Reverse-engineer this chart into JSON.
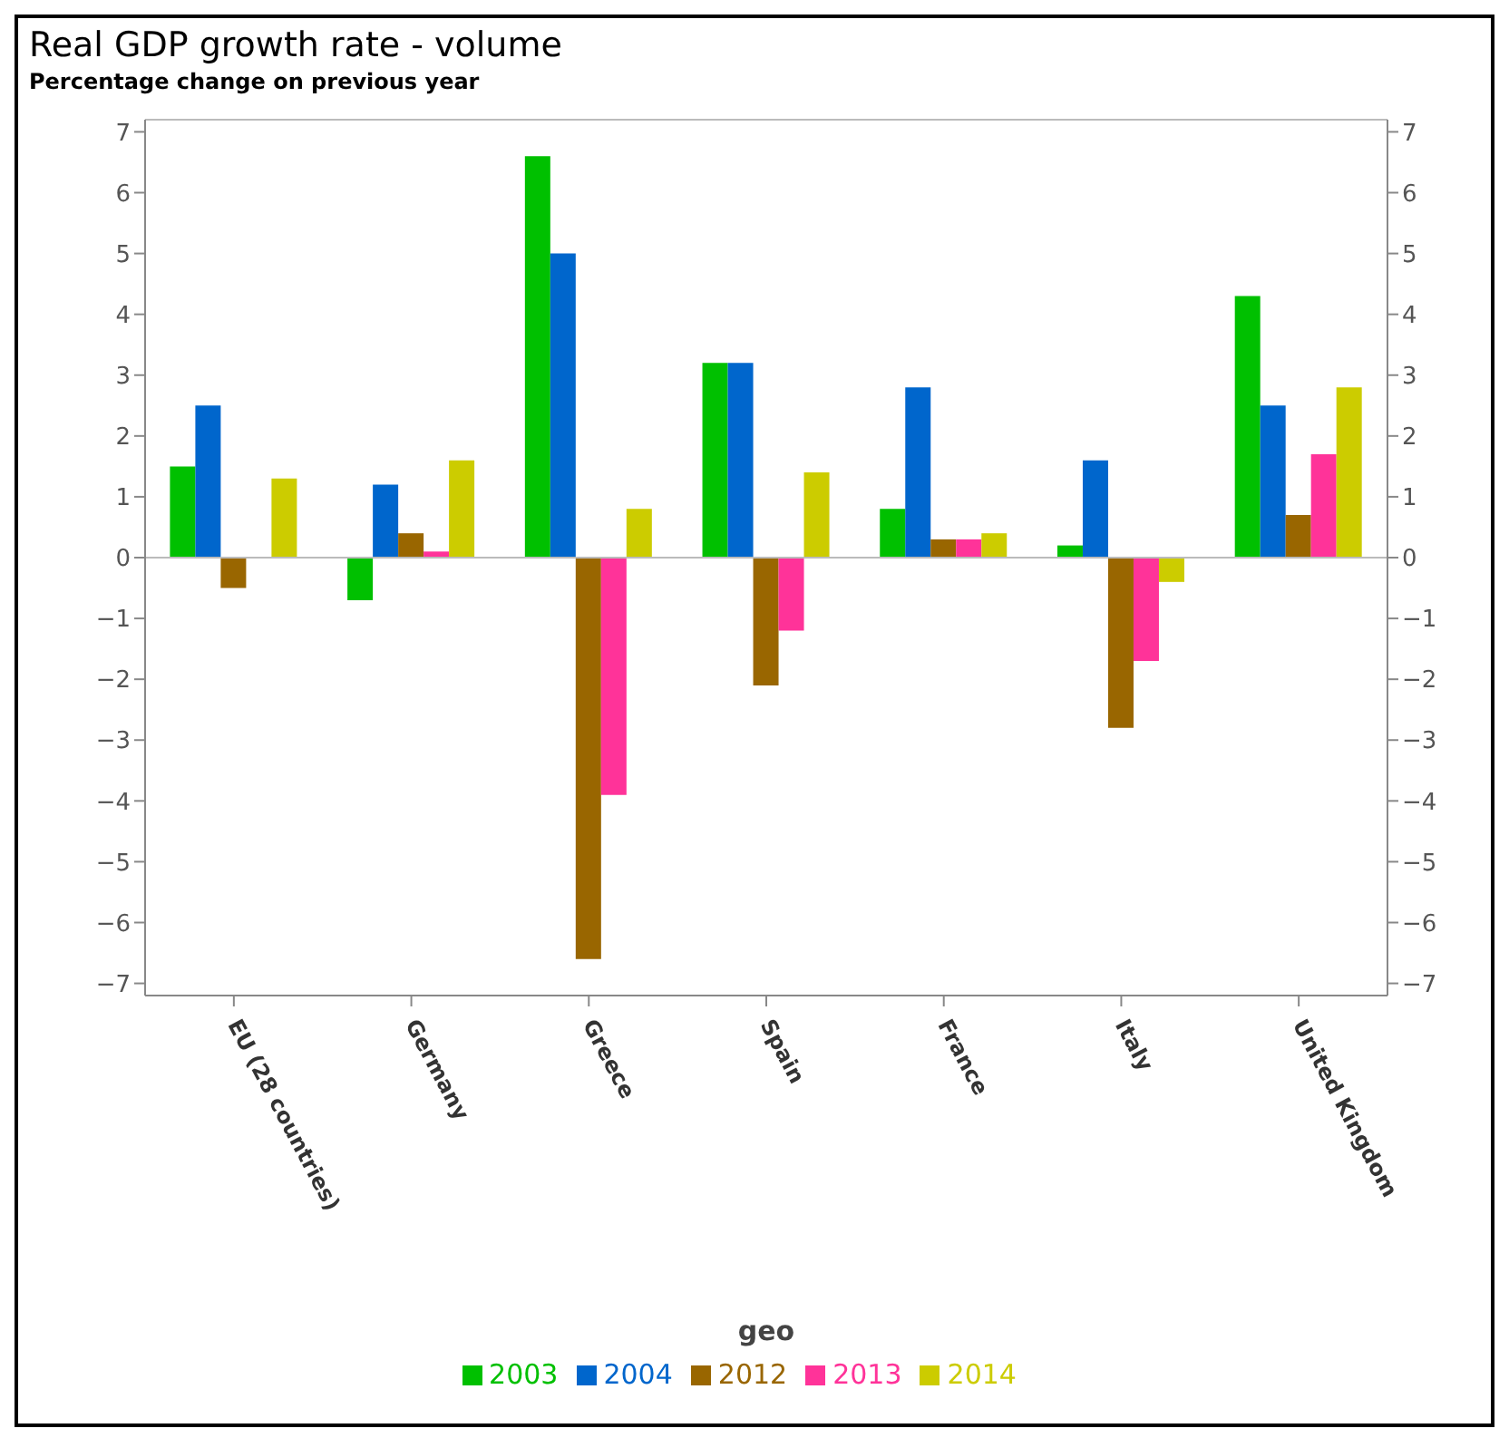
{
  "chart_data": {
    "type": "bar",
    "title": "Real GDP growth rate - volume",
    "subtitle": "Percentage change on previous year",
    "xlabel": "geo",
    "categories": [
      "EU (28 countries)",
      "Germany",
      "Greece",
      "Spain",
      "France",
      "Italy",
      "United Kingdom"
    ],
    "series": [
      {
        "name": "2003",
        "color": "#00c000",
        "values": [
          1.5,
          -0.7,
          6.6,
          3.2,
          0.8,
          0.2,
          4.3
        ]
      },
      {
        "name": "2004",
        "color": "#0066cc",
        "values": [
          2.5,
          1.2,
          5.0,
          3.2,
          2.8,
          1.6,
          2.5
        ]
      },
      {
        "name": "2012",
        "color": "#996600",
        "values": [
          -0.5,
          0.4,
          -6.6,
          -2.1,
          0.3,
          -2.8,
          0.7
        ]
      },
      {
        "name": "2013",
        "color": "#ff3399",
        "values": [
          0,
          0.1,
          -3.9,
          -1.2,
          0.3,
          -1.7,
          1.7
        ]
      },
      {
        "name": "2014",
        "color": "#cccc00",
        "values": [
          1.3,
          1.6,
          0.8,
          1.4,
          0.4,
          -0.4,
          2.8
        ]
      }
    ],
    "ylim": [
      -7.2,
      7.2
    ],
    "yticks": [
      -7,
      -6,
      -5,
      -4,
      -3,
      -2,
      -1,
      0,
      1,
      2,
      3,
      4,
      5,
      6,
      7
    ],
    "y2lim": [
      -7.2,
      7.2
    ],
    "y2ticks": [
      -7,
      -6,
      -5,
      -4,
      -3,
      -2,
      -1,
      0,
      1,
      2,
      3,
      4,
      5,
      6,
      7
    ],
    "grid": "y",
    "legend": "bottom"
  }
}
